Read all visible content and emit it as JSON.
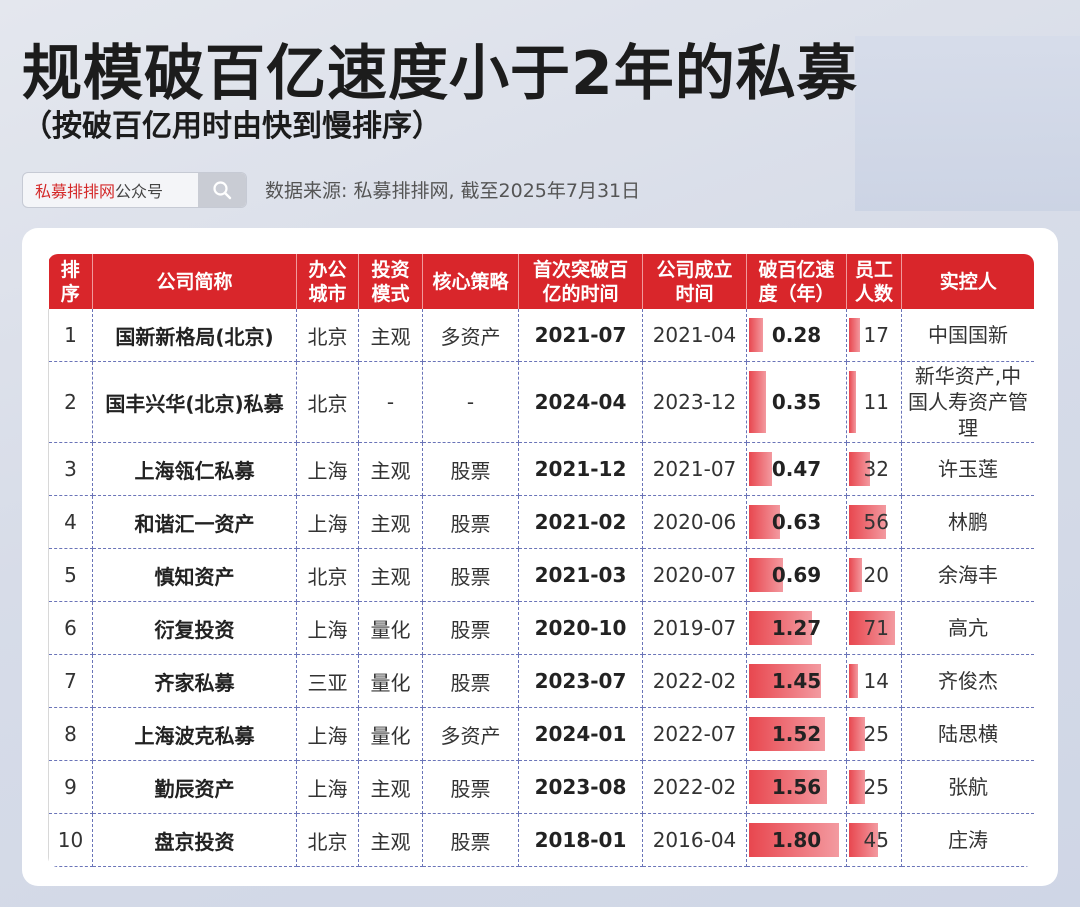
{
  "header": {
    "title": "规模破百亿速度小于2年的私募",
    "subtitle": "（按破百亿用时由快到慢排序）",
    "search_brand": "私募排排网",
    "search_suffix": "公众号",
    "source": "数据来源: 私募排排网, 截至2025年7月31日"
  },
  "watermark": "私募排排网",
  "colors": {
    "header_red": "#d9262b",
    "bar_red": "#e8474f"
  },
  "icons": {
    "search": "search-icon"
  },
  "chart_data": {
    "type": "table",
    "columns": [
      "排序",
      "公司简称",
      "办公城市",
      "投资模式",
      "核心策略",
      "首次突破百亿的时间",
      "公司成立时间",
      "破百亿速度（年）",
      "员工人数",
      "实控人"
    ],
    "rows": [
      {
        "rank": "1",
        "company": "国新新格局(北京)",
        "city": "北京",
        "mode": "主观",
        "strategy": "多资产",
        "first_10b": "2021-07",
        "founded": "2021-04",
        "speed": 0.28,
        "speed_label": "0.28",
        "staff": 17,
        "staff_label": "17",
        "controller": "中国国新"
      },
      {
        "rank": "2",
        "company": "国丰兴华(北京)私募",
        "city": "北京",
        "mode": "-",
        "strategy": "-",
        "first_10b": "2024-04",
        "founded": "2023-12",
        "speed": 0.35,
        "speed_label": "0.35",
        "staff": 11,
        "staff_label": "11",
        "controller": "新华资产,中国人寿资产管理"
      },
      {
        "rank": "3",
        "company": "上海瓴仁私募",
        "city": "上海",
        "mode": "主观",
        "strategy": "股票",
        "first_10b": "2021-12",
        "founded": "2021-07",
        "speed": 0.47,
        "speed_label": "0.47",
        "staff": 32,
        "staff_label": "32",
        "controller": "许玉莲"
      },
      {
        "rank": "4",
        "company": "和谐汇一资产",
        "city": "上海",
        "mode": "主观",
        "strategy": "股票",
        "first_10b": "2021-02",
        "founded": "2020-06",
        "speed": 0.63,
        "speed_label": "0.63",
        "staff": 56,
        "staff_label": "56",
        "controller": "林鹏"
      },
      {
        "rank": "5",
        "company": "慎知资产",
        "city": "北京",
        "mode": "主观",
        "strategy": "股票",
        "first_10b": "2021-03",
        "founded": "2020-07",
        "speed": 0.69,
        "speed_label": "0.69",
        "staff": 20,
        "staff_label": "20",
        "controller": "余海丰"
      },
      {
        "rank": "6",
        "company": "衍复投资",
        "city": "上海",
        "mode": "量化",
        "strategy": "股票",
        "first_10b": "2020-10",
        "founded": "2019-07",
        "speed": 1.27,
        "speed_label": "1.27",
        "staff": 71,
        "staff_label": "71",
        "controller": "高亢"
      },
      {
        "rank": "7",
        "company": "齐家私募",
        "city": "三亚",
        "mode": "量化",
        "strategy": "股票",
        "first_10b": "2023-07",
        "founded": "2022-02",
        "speed": 1.45,
        "speed_label": "1.45",
        "staff": 14,
        "staff_label": "14",
        "controller": "齐俊杰"
      },
      {
        "rank": "8",
        "company": "上海波克私募",
        "city": "上海",
        "mode": "量化",
        "strategy": "多资产",
        "first_10b": "2024-01",
        "founded": "2022-07",
        "speed": 1.52,
        "speed_label": "1.52",
        "staff": 25,
        "staff_label": "25",
        "controller": "陆思横"
      },
      {
        "rank": "9",
        "company": "勤辰资产",
        "city": "上海",
        "mode": "主观",
        "strategy": "股票",
        "first_10b": "2023-08",
        "founded": "2022-02",
        "speed": 1.56,
        "speed_label": "1.56",
        "staff": 25,
        "staff_label": "25",
        "controller": "张航"
      },
      {
        "rank": "10",
        "company": "盘京投资",
        "city": "北京",
        "mode": "主观",
        "strategy": "股票",
        "first_10b": "2018-01",
        "founded": "2016-04",
        "speed": 1.8,
        "speed_label": "1.80",
        "staff": 45,
        "staff_label": "45",
        "controller": "庄涛"
      }
    ],
    "speed_bar_max": 1.85,
    "staff_bar_max": 75
  }
}
